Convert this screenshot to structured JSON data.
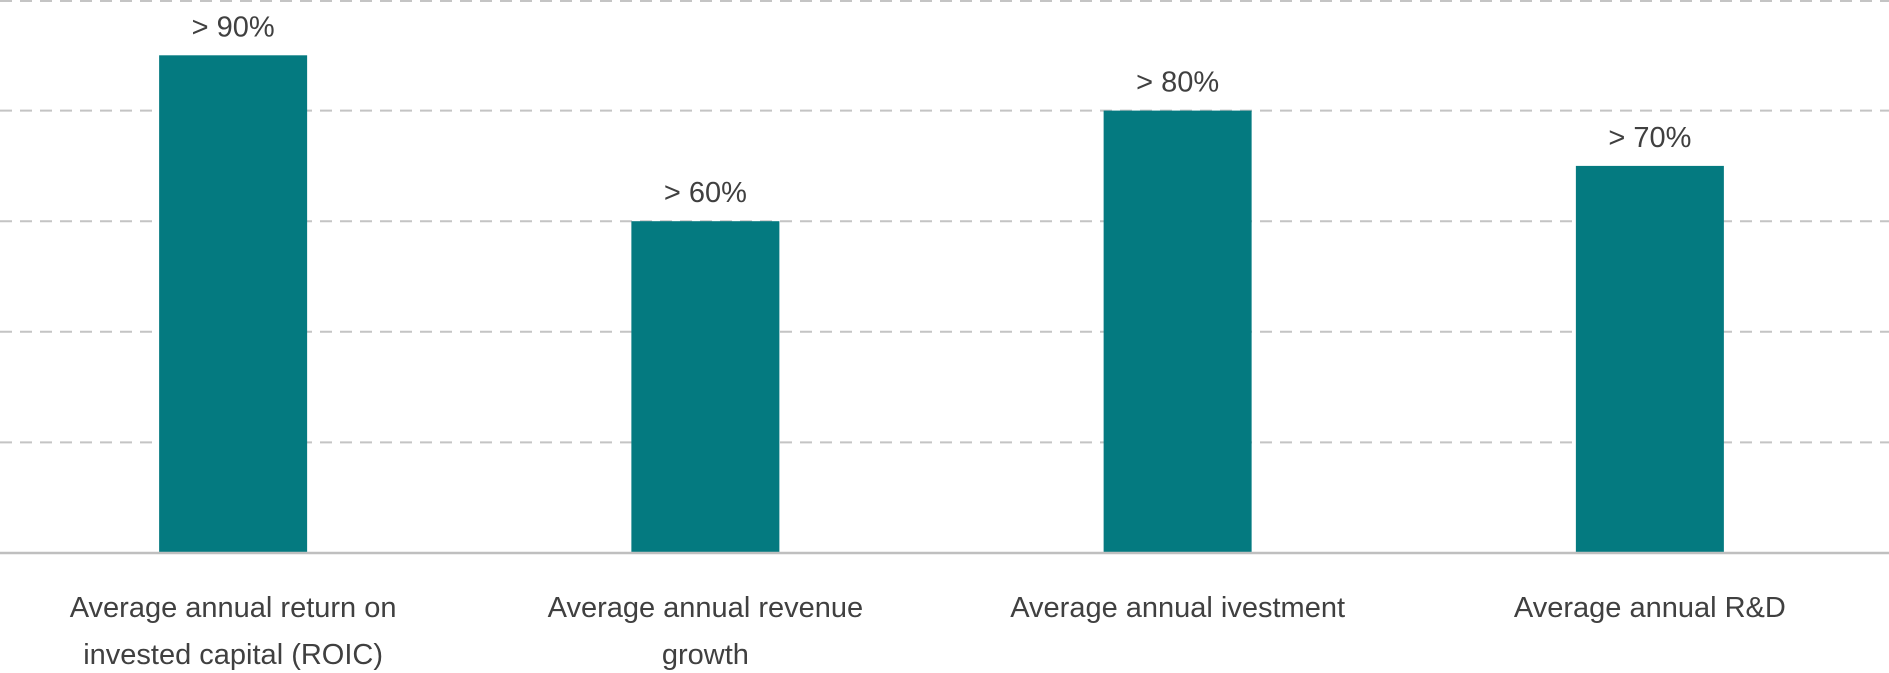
{
  "chart_data": {
    "type": "bar",
    "title": "",
    "xlabel": "",
    "ylabel": "",
    "categories": [
      [
        "Average annual return on",
        "invested capital (ROIC)"
      ],
      [
        "Average annual revenue",
        "growth"
      ],
      [
        "Average annual ivestment"
      ],
      [
        "Average annual R&D"
      ]
    ],
    "values": [
      90,
      60,
      80,
      70
    ],
    "data_labels": [
      "> 90%",
      "> 60%",
      "> 80%",
      "> 70%"
    ],
    "ylim": [
      0,
      100
    ],
    "gridlines": [
      20,
      40,
      60,
      80,
      100
    ],
    "grid": true,
    "y_tick_labels_visible": false,
    "legend": "none",
    "bar_color": "#047A80"
  }
}
